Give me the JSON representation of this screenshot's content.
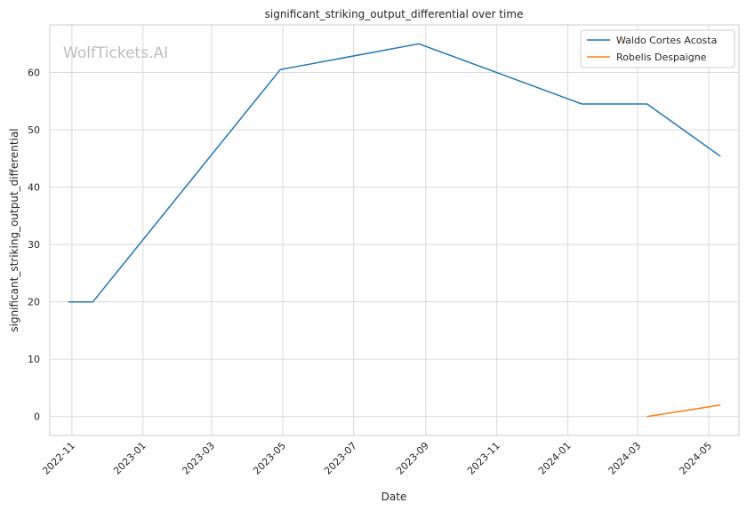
{
  "chart_data": {
    "type": "line",
    "title": "significant_striking_output_differential over time",
    "xlabel": "Date",
    "ylabel": "significant_striking_output_differential",
    "watermark": "WolfTickets.AI",
    "x_ticks": [
      "2022-11",
      "2023-01",
      "2023-03",
      "2023-05",
      "2023-07",
      "2023-09",
      "2023-11",
      "2024-01",
      "2024-03",
      "2024-05"
    ],
    "y_ticks": [
      "0",
      "10",
      "20",
      "30",
      "40",
      "50",
      "60"
    ],
    "ylim": [
      -3.3,
      68.3
    ],
    "xlim": [
      "2022-10-13",
      "2024-05-27"
    ],
    "grid": true,
    "legend_position": "top-right",
    "series": [
      {
        "name": "Waldo Cortes Acosta",
        "color": "#1f77b4",
        "points": [
          {
            "x": "2022-10-29",
            "y": 20
          },
          {
            "x": "2022-11-19",
            "y": 20
          },
          {
            "x": "2023-04-29",
            "y": 60.5
          },
          {
            "x": "2023-08-26",
            "y": 65
          },
          {
            "x": "2024-01-13",
            "y": 54.5
          },
          {
            "x": "2024-03-09",
            "y": 54.5
          },
          {
            "x": "2024-05-11",
            "y": 45.4
          }
        ]
      },
      {
        "name": "Robelis Despaigne",
        "color": "#ff7f0e",
        "points": [
          {
            "x": "2024-03-09",
            "y": 0
          },
          {
            "x": "2024-05-11",
            "y": 2
          }
        ]
      }
    ]
  }
}
